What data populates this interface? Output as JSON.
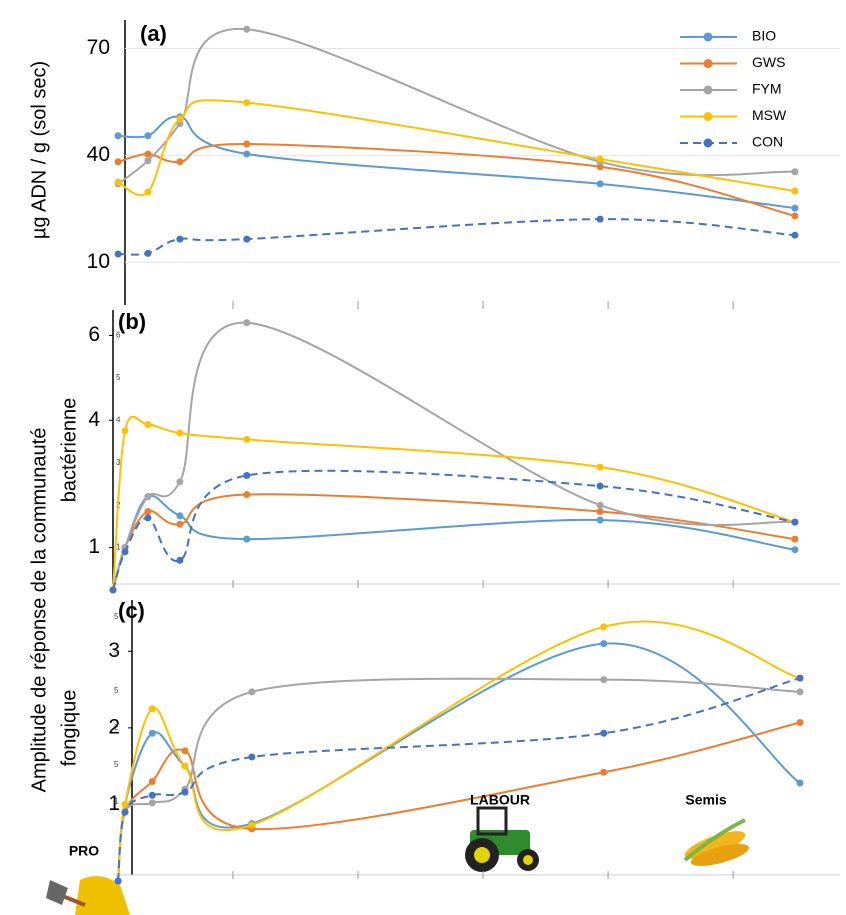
{
  "chart_data": [
    {
      "type": "line",
      "panel": "(a)",
      "y_label": "µg ADN / g (sol sec)",
      "x": [
        0.7,
        4.8,
        9.2,
        18.4,
        67,
        93.8
      ],
      "xlim": [
        0,
        100
      ],
      "xticks": [
        16.5,
        33.7,
        50.9,
        68.1,
        85.3
      ],
      "ylim": [
        -2,
        78
      ],
      "yticks": [
        10,
        40,
        70
      ],
      "grid": true,
      "legend": "upper right",
      "series": [
        {
          "name": "BIO",
          "color": "#5b9bd5",
          "values": [
            45.5,
            45.5,
            50.8,
            40.4,
            32,
            25.2
          ]
        },
        {
          "name": "GWS",
          "color": "#ed7d31",
          "values": [
            38.2,
            40.4,
            38.2,
            43.2,
            36.8,
            23
          ]
        },
        {
          "name": "FYM",
          "color": "#a5a5a5",
          "values": [
            32,
            38.5,
            48.9,
            75.4,
            38.2,
            35.4
          ]
        },
        {
          "name": "MSW",
          "color": "#ffc000",
          "values": [
            32.5,
            29.7,
            50.3,
            54.8,
            39,
            30
          ]
        },
        {
          "name": "CON",
          "color": "#4472c4",
          "dashed": true,
          "values": [
            12.3,
            12.5,
            16.5,
            16.5,
            22.1,
            17.6
          ]
        }
      ]
    },
    {
      "type": "line",
      "panel": "(b)",
      "y_label": "Amplitude de réponse de la communauté",
      "y_sublabel": "bactérienne",
      "x": [
        0,
        1.65,
        4.8,
        9.2,
        18.4,
        67,
        93.8
      ],
      "xlim": [
        0,
        100
      ],
      "xticks": [
        16.5,
        33.7,
        50.9,
        68.1,
        85.3
      ],
      "ylim": [
        0,
        6.6
      ],
      "yticks": [
        1,
        4,
        6
      ],
      "minor_yticks": [
        1,
        2,
        3,
        4,
        5,
        6
      ],
      "series": [
        {
          "name": "BIO",
          "color": "#5b9bd5",
          "values": [
            0,
            1,
            2.2,
            1.75,
            1.2,
            1.65,
            0.95
          ]
        },
        {
          "name": "GWS",
          "color": "#ed7d31",
          "values": [
            0,
            1,
            1.85,
            1.55,
            2.25,
            1.85,
            1.2
          ]
        },
        {
          "name": "FYM",
          "color": "#a5a5a5",
          "values": [
            0,
            1,
            2.2,
            2.55,
            6.3,
            2,
            1.6
          ]
        },
        {
          "name": "MSW",
          "color": "#ffc000",
          "values": [
            0,
            3.75,
            3.9,
            3.7,
            3.55,
            2.9,
            1.6
          ]
        },
        {
          "name": "CON",
          "color": "#4472c4",
          "dashed": true,
          "values": [
            0,
            0.9,
            1.7,
            0.7,
            2.7,
            2.45,
            1.6
          ]
        }
      ]
    },
    {
      "type": "line",
      "panel": "(c)",
      "y_sublabel": "fongique",
      "x": [
        0.7,
        1.65,
        5.4,
        9.9,
        19.1,
        67.5,
        94.5
      ],
      "xlim": [
        0,
        100
      ],
      "xticks": [
        16.5,
        33.7,
        50.9,
        68.1,
        85.3
      ],
      "ylim": [
        0,
        3.67
      ],
      "yticks": [
        1,
        2,
        3
      ],
      "tick_texts": [
        "5",
        "3",
        "5",
        "2",
        "5",
        "1"
      ],
      "annotations": [
        "LABOUR",
        "Semis",
        "PRO"
      ],
      "series": [
        {
          "name": "BIO",
          "color": "#5b9bd5",
          "values": [
            0,
            1,
            1.93,
            1.5,
            0.75,
            3.1,
            1.28
          ]
        },
        {
          "name": "GWS",
          "color": "#ed7d31",
          "values": [
            0,
            0.9,
            1.3,
            1.7,
            0.68,
            1.42,
            2.07
          ]
        },
        {
          "name": "FYM",
          "color": "#a5a5a5",
          "values": [
            0,
            0.9,
            1.02,
            1.2,
            2.47,
            2.63,
            2.47
          ]
        },
        {
          "name": "MSW",
          "color": "#ffc000",
          "values": [
            0,
            1,
            2.25,
            1.5,
            0.73,
            3.32,
            2.65
          ]
        },
        {
          "name": "CON",
          "color": "#4472c4",
          "dashed": true,
          "values": [
            0,
            0.9,
            1.12,
            1.16,
            1.62,
            1.93,
            2.65
          ]
        }
      ]
    }
  ]
}
